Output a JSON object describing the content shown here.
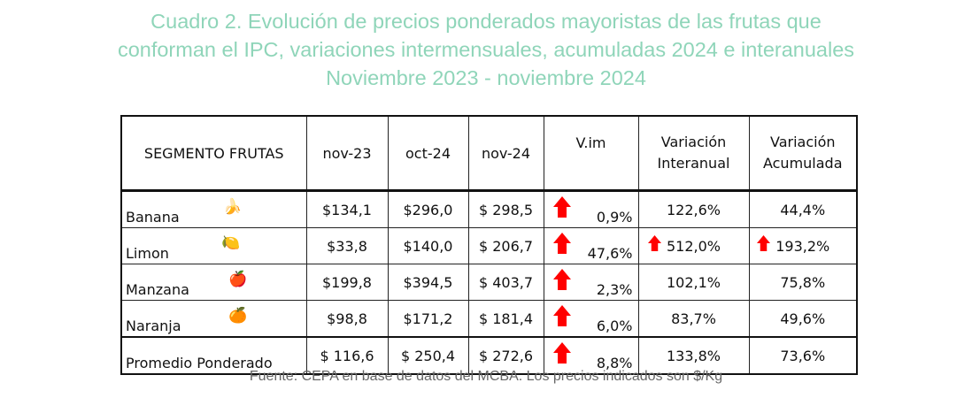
{
  "title": [
    "Cuadro 2. Evolución de precios ponderados mayoristas de las frutas que",
    "conforman el IPC, variaciones intermensuales, acumuladas 2024 e interanuales",
    "Noviembre 2023 - noviembre 2024"
  ],
  "headers": [
    "SEGMENTO FRUTAS",
    "nov-23",
    "oct-24",
    "nov-24",
    "V.im",
    "Variación Interanual",
    "Variación Acumulada"
  ],
  "rows": [
    {
      "name": "Banana",
      "icon": "banana-icon",
      "glyph": "🍌",
      "nov23": "$134,1",
      "oct24": "$296,0",
      "nov24": "$ 298,5",
      "vim": "0,9%",
      "inter": "122,6%",
      "acum": "44,4%",
      "up_inter": false,
      "up_acum": false
    },
    {
      "name": "Limon",
      "icon": "lemon-icon",
      "glyph": "🍋",
      "nov23": "$33,8",
      "oct24": "$140,0",
      "nov24": "$ 206,7",
      "vim": "47,6%",
      "inter": "512,0%",
      "acum": "193,2%",
      "up_inter": true,
      "up_acum": true
    },
    {
      "name": "Manzana",
      "icon": "apple-icon",
      "glyph": "🍎",
      "nov23": "$199,8",
      "oct24": "$394,5",
      "nov24": "$ 403,7",
      "vim": "2,3%",
      "inter": "102,1%",
      "acum": "75,8%",
      "up_inter": false,
      "up_acum": false
    },
    {
      "name": "Naranja",
      "icon": "orange-icon",
      "glyph": "🍊",
      "nov23": "$98,8",
      "oct24": "$171,2",
      "nov24": "$ 181,4",
      "vim": "6,0%",
      "inter": "83,7%",
      "acum": "49,6%",
      "up_inter": false,
      "up_acum": false
    },
    {
      "name": "Promedio Ponderado",
      "nov23": "$ 116,6",
      "oct24": "$ 250,4",
      "nov24": "$ 272,6",
      "vim": "8,8%",
      "inter": "133,8%",
      "acum": "73,6%",
      "up_inter": false,
      "up_acum": false
    }
  ],
  "source": "Fuente: CEPA en base de datos del MCBA. Los precios indicados son $/Kg",
  "colors": {
    "title": "#8fd5b9",
    "arrow": "#ff0000"
  }
}
